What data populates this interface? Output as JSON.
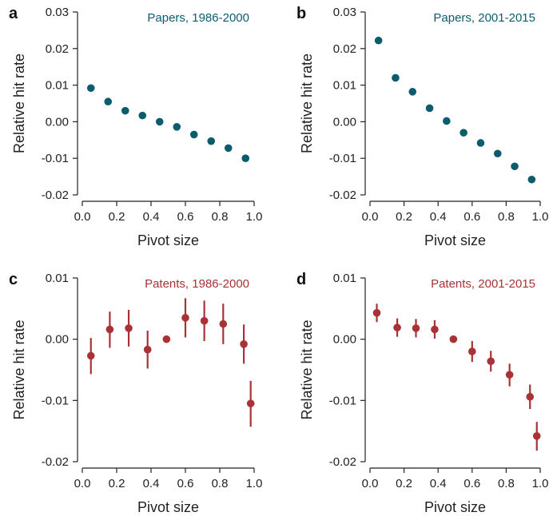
{
  "chart_data": [
    {
      "type": "scatter",
      "panel": "a",
      "title": "Papers, 1986-2000",
      "color": "#0d5c6e",
      "xlabel": "Pivot size",
      "ylabel": "Relative hit rate",
      "xlim": [
        0.0,
        1.0
      ],
      "ylim": [
        -0.02,
        0.03
      ],
      "xticks": [
        "0.0",
        "0.2",
        "0.4",
        "0.6",
        "0.8",
        "1.0"
      ],
      "yticks": [
        "-0.02",
        "-0.01",
        "0.00",
        "0.01",
        "0.02",
        "0.03"
      ],
      "error_bars": false,
      "points": [
        {
          "x": 0.05,
          "y": 0.0092
        },
        {
          "x": 0.15,
          "y": 0.0055
        },
        {
          "x": 0.25,
          "y": 0.003
        },
        {
          "x": 0.35,
          "y": 0.0017
        },
        {
          "x": 0.45,
          "y": 0.0
        },
        {
          "x": 0.55,
          "y": -0.0014
        },
        {
          "x": 0.65,
          "y": -0.0035
        },
        {
          "x": 0.75,
          "y": -0.0053
        },
        {
          "x": 0.85,
          "y": -0.0072
        },
        {
          "x": 0.95,
          "y": -0.01
        }
      ]
    },
    {
      "type": "scatter",
      "panel": "b",
      "title": "Papers, 2001-2015",
      "color": "#0d5c6e",
      "xlabel": "Pivot size",
      "ylabel": "Relative hit rate",
      "xlim": [
        0.0,
        1.0
      ],
      "ylim": [
        -0.02,
        0.03
      ],
      "xticks": [
        "0.0",
        "0.2",
        "0.4",
        "0.6",
        "0.8",
        "1.0"
      ],
      "yticks": [
        "-0.02",
        "-0.01",
        "0.00",
        "0.01",
        "0.02",
        "0.03"
      ],
      "error_bars": false,
      "points": [
        {
          "x": 0.05,
          "y": 0.0222
        },
        {
          "x": 0.15,
          "y": 0.012
        },
        {
          "x": 0.25,
          "y": 0.0082
        },
        {
          "x": 0.35,
          "y": 0.0037
        },
        {
          "x": 0.45,
          "y": 0.0002
        },
        {
          "x": 0.55,
          "y": -0.003
        },
        {
          "x": 0.65,
          "y": -0.0058
        },
        {
          "x": 0.75,
          "y": -0.0087
        },
        {
          "x": 0.85,
          "y": -0.0122
        },
        {
          "x": 0.95,
          "y": -0.0158
        }
      ]
    },
    {
      "type": "scatter",
      "panel": "c",
      "title": "Patents, 1986-2000",
      "color": "#a83236",
      "xlabel": "Pivot size",
      "ylabel": "Relative hit rate",
      "xlim": [
        0.0,
        1.0
      ],
      "ylim": [
        -0.02,
        0.01
      ],
      "xticks": [
        "0.0",
        "0.2",
        "0.4",
        "0.6",
        "0.8",
        "1.0"
      ],
      "yticks": [
        "-0.02",
        "-0.01",
        "0.00",
        "0.01"
      ],
      "error_bars": true,
      "points": [
        {
          "x": 0.05,
          "y": -0.0027,
          "lo": -0.0057,
          "hi": 0.0002
        },
        {
          "x": 0.16,
          "y": 0.0016,
          "lo": -0.0014,
          "hi": 0.0045
        },
        {
          "x": 0.27,
          "y": 0.0018,
          "lo": -0.0012,
          "hi": 0.0048
        },
        {
          "x": 0.38,
          "y": -0.0017,
          "lo": -0.0048,
          "hi": 0.0014
        },
        {
          "x": 0.49,
          "y": 0.0,
          "lo": 0.0,
          "hi": 0.0
        },
        {
          "x": 0.6,
          "y": 0.0035,
          "lo": 0.0003,
          "hi": 0.0067
        },
        {
          "x": 0.71,
          "y": 0.003,
          "lo": -0.0003,
          "hi": 0.0063
        },
        {
          "x": 0.82,
          "y": 0.0025,
          "lo": -0.0008,
          "hi": 0.0058
        },
        {
          "x": 0.94,
          "y": -0.0008,
          "lo": -0.004,
          "hi": 0.0024
        },
        {
          "x": 0.98,
          "y": -0.0105,
          "lo": -0.0143,
          "hi": -0.0068
        }
      ]
    },
    {
      "type": "scatter",
      "panel": "d",
      "title": "Patents, 2001-2015",
      "color": "#a83236",
      "xlabel": "Pivot size",
      "ylabel": "Relative hit rate",
      "xlim": [
        0.0,
        1.0
      ],
      "ylim": [
        -0.02,
        0.01
      ],
      "xticks": [
        "0.0",
        "0.2",
        "0.4",
        "0.6",
        "0.8",
        "1.0"
      ],
      "yticks": [
        "-0.02",
        "-0.01",
        "0.00",
        "0.01"
      ],
      "error_bars": true,
      "points": [
        {
          "x": 0.04,
          "y": 0.0043,
          "lo": 0.0028,
          "hi": 0.0058
        },
        {
          "x": 0.16,
          "y": 0.0019,
          "lo": 0.0004,
          "hi": 0.0034
        },
        {
          "x": 0.27,
          "y": 0.0018,
          "lo": 0.0003,
          "hi": 0.0033
        },
        {
          "x": 0.38,
          "y": 0.0016,
          "lo": 0.0001,
          "hi": 0.0031
        },
        {
          "x": 0.49,
          "y": 0.0,
          "lo": 0.0,
          "hi": 0.0
        },
        {
          "x": 0.6,
          "y": -0.002,
          "lo": -0.0037,
          "hi": -0.0003
        },
        {
          "x": 0.71,
          "y": -0.0036,
          "lo": -0.0053,
          "hi": -0.0019
        },
        {
          "x": 0.82,
          "y": -0.0058,
          "lo": -0.0077,
          "hi": -0.004
        },
        {
          "x": 0.94,
          "y": -0.0094,
          "lo": -0.0114,
          "hi": -0.0074
        },
        {
          "x": 0.98,
          "y": -0.0158,
          "lo": -0.0182,
          "hi": -0.0135
        }
      ]
    }
  ]
}
